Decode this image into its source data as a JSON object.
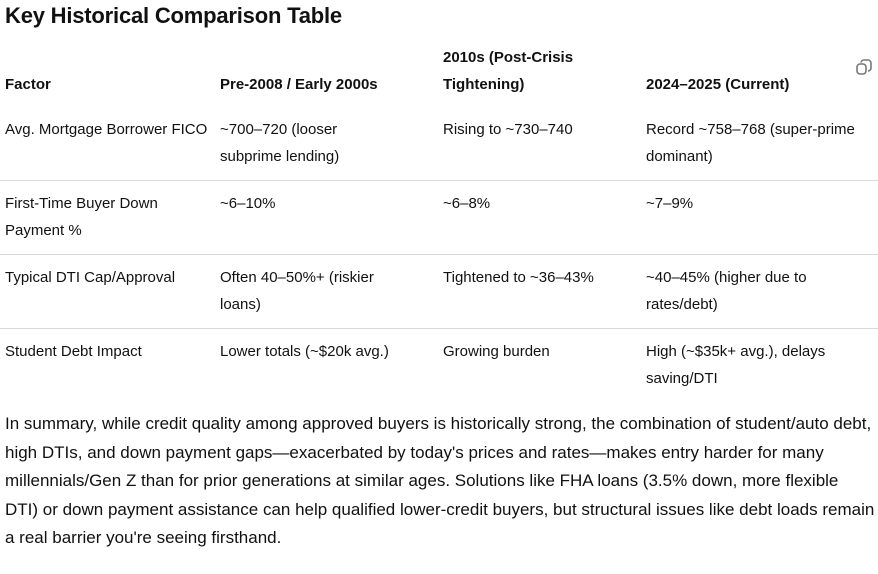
{
  "title": "Key Historical Comparison Table",
  "table": {
    "headers": [
      "Factor",
      "Pre-2008 / Early 2000s",
      "2010s (Post-Crisis Tightening)",
      "2024–2025 (Current)"
    ],
    "rows": [
      [
        "Avg. Mortgage Borrower FICO",
        "~700–720 (looser subprime lending)",
        "Rising to ~730–740",
        "Record ~758–768 (super-prime dominant)"
      ],
      [
        "First-Time Buyer Down Payment %",
        "~6–10%",
        "~6–8%",
        "~7–9%"
      ],
      [
        "Typical DTI Cap/Approval",
        "Often 40–50%+ (riskier loans)",
        "Tightened to ~36–43%",
        "~40–45% (higher due to rates/debt)"
      ],
      [
        "Student Debt Impact",
        "Lower totals (~$20k avg.)",
        "Growing burden",
        "High (~$35k+ avg.), delays saving/DTI"
      ]
    ],
    "copy_icon": "copy-icon"
  },
  "summary": "In summary, while credit quality among approved buyers is historically strong, the combination of student/auto debt, high DTIs, and down payment gaps—exacerbated by today's prices and rates—makes entry harder for many millennials/Gen Z than for prior generations at similar ages. Solutions like FHA loans (3.5% down, more flexible DTI) or down payment assistance can help qualified lower-credit buyers, but structural issues like debt loads remain a real barrier you're seeing firsthand."
}
